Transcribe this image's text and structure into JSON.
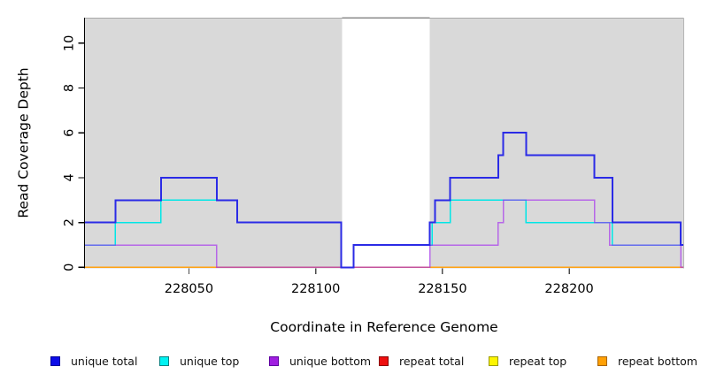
{
  "chart_data": {
    "type": "line",
    "step_mode": "post",
    "title": "",
    "xlabel": "Coordinate in Reference Genome",
    "ylabel": "Read Coverage Depth",
    "xlim": [
      228009,
      228245
    ],
    "ylim": [
      0,
      11.1
    ],
    "x_ticks": [
      228050,
      228100,
      228150,
      228200
    ],
    "y_ticks": [
      0,
      2,
      4,
      6,
      8,
      10
    ],
    "grid": false,
    "panel_fill": "#d9d9d9",
    "covered_regions": [
      [
        228009,
        228110.5
      ],
      [
        228145,
        228245
      ]
    ],
    "gap_region": [
      228110.5,
      228145
    ],
    "axis_color": "#000000",
    "x_tick_color": "#4c4c4c",
    "tick_label_color": "#000000",
    "top_border_color": "#a8a8a8",
    "gap_border_color": "#8c8c8c",
    "right_border_color": "#b5b5b5",
    "series": [
      {
        "name": "repeat total",
        "slug": "repeat-total",
        "line_color": "#e81717",
        "line_width": 1.4,
        "line_opacity": 1,
        "steps": [
          [
            228009,
            0
          ],
          [
            228245,
            0
          ]
        ]
      },
      {
        "name": "repeat top",
        "slug": "repeat-top",
        "line_color": "#f5ea00",
        "line_width": 1.4,
        "line_opacity": 1,
        "steps": [
          [
            228009,
            0
          ],
          [
            228245,
            0
          ]
        ]
      },
      {
        "name": "repeat bottom",
        "slug": "repeat-bottom",
        "line_color": "#ffa214",
        "line_width": 1.7,
        "line_opacity": 1,
        "steps": [
          [
            228009,
            0
          ],
          [
            228245,
            0
          ]
        ]
      },
      {
        "name": "unique top",
        "slug": "unique-top",
        "line_color": "#00e6e6",
        "line_width": 1.5,
        "line_opacity": 1,
        "steps": [
          [
            228009,
            1
          ],
          [
            228021,
            2
          ],
          [
            228039,
            3
          ],
          [
            228069,
            2
          ],
          [
            228110,
            0
          ],
          [
            228115,
            1
          ],
          [
            228146,
            2
          ],
          [
            228153,
            3
          ],
          [
            228183,
            2
          ],
          [
            228217,
            1
          ],
          [
            228245,
            1
          ]
        ]
      },
      {
        "name": "unique bottom",
        "slug": "unique-bottom",
        "line_color": "#a020f0",
        "line_width": 1.5,
        "line_opacity": 0.62,
        "steps": [
          [
            228009,
            1
          ],
          [
            228061,
            0
          ],
          [
            228145,
            1
          ],
          [
            228172,
            2
          ],
          [
            228174,
            3
          ],
          [
            228210,
            2
          ],
          [
            228216,
            1
          ],
          [
            228244,
            0
          ],
          [
            228245,
            0
          ]
        ]
      },
      {
        "name": "unique total",
        "slug": "unique-total",
        "line_color": "#2b2be6",
        "line_width": 2,
        "line_opacity": 1,
        "steps": [
          [
            228009,
            2
          ],
          [
            228021,
            3
          ],
          [
            228039,
            4
          ],
          [
            228061,
            3
          ],
          [
            228069,
            2
          ],
          [
            228110,
            0
          ],
          [
            228115,
            1
          ],
          [
            228145,
            2
          ],
          [
            228147,
            3
          ],
          [
            228153,
            4
          ],
          [
            228172,
            5
          ],
          [
            228174,
            6
          ],
          [
            228183,
            5
          ],
          [
            228210,
            4
          ],
          [
            228217,
            2
          ],
          [
            228244,
            1
          ],
          [
            228245,
            1
          ]
        ]
      }
    ],
    "legend": {
      "position": "bottom",
      "items": [
        {
          "label": "unique total",
          "fill": "#0d0de8",
          "border": "#000099"
        },
        {
          "label": "unique top",
          "fill": "#00f2f2",
          "border": "#008080"
        },
        {
          "label": "unique bottom",
          "fill": "#a01ee0",
          "border": "#5e00a0"
        },
        {
          "label": "repeat total",
          "fill": "#ee0f0f",
          "border": "#8b0000"
        },
        {
          "label": "repeat top",
          "fill": "#fdf500",
          "border": "#999900"
        },
        {
          "label": "repeat bottom",
          "fill": "#ffa005",
          "border": "#a86400"
        }
      ]
    }
  }
}
